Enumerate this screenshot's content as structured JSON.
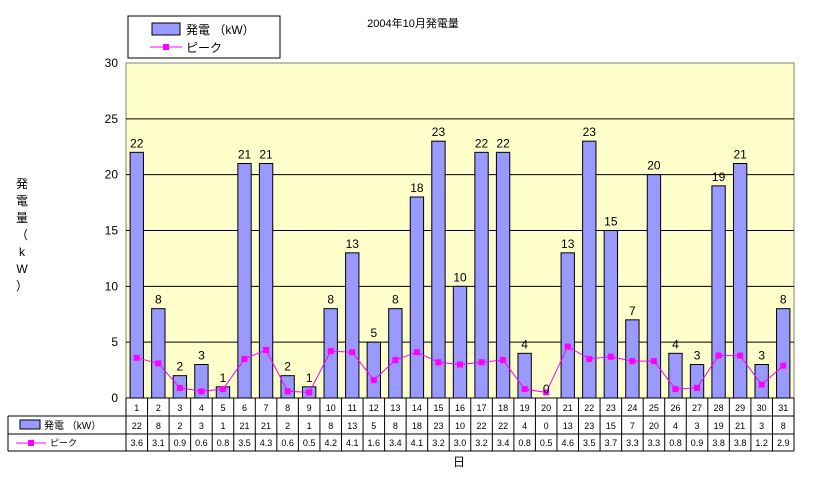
{
  "chart_data": {
    "type": "bar",
    "title": "2004年10月発電量",
    "xlabel": "日",
    "ylabel_chars": [
      "発",
      "電",
      "量",
      "（",
      "k",
      "W",
      "）"
    ],
    "ylim": [
      0,
      30
    ],
    "yticks": [
      0,
      5,
      10,
      15,
      20,
      25,
      30
    ],
    "grid": true,
    "legend_position": "top-left",
    "categories": [
      "1",
      "2",
      "3",
      "4",
      "5",
      "6",
      "7",
      "8",
      "9",
      "10",
      "11",
      "12",
      "13",
      "14",
      "15",
      "16",
      "17",
      "18",
      "19",
      "20",
      "21",
      "22",
      "23",
      "24",
      "25",
      "26",
      "27",
      "28",
      "29",
      "30",
      "31"
    ],
    "series": [
      {
        "name": "発電 （kW）",
        "kind": "bar",
        "color": "#9999ff",
        "values": [
          22,
          8,
          2,
          3,
          1,
          21,
          21,
          2,
          1,
          8,
          13,
          5,
          8,
          18,
          23,
          10,
          22,
          22,
          4,
          0,
          13,
          23,
          15,
          7,
          20,
          4,
          3,
          19,
          21,
          3,
          8
        ]
      },
      {
        "name": "ピーク",
        "kind": "line",
        "color": "#ff00ff",
        "values": [
          3.6,
          3.1,
          0.9,
          0.6,
          0.8,
          3.5,
          4.3,
          0.6,
          0.5,
          4.2,
          4.1,
          1.6,
          3.4,
          4.1,
          3.2,
          3.0,
          3.2,
          3.4,
          0.8,
          0.5,
          4.6,
          3.5,
          3.7,
          3.3,
          3.3,
          0.8,
          0.9,
          3.8,
          3.8,
          1.2,
          2.9
        ]
      }
    ],
    "table_labels": [
      "発電 （kW）",
      "ピーク"
    ],
    "plot_background": "#ffffcc"
  }
}
